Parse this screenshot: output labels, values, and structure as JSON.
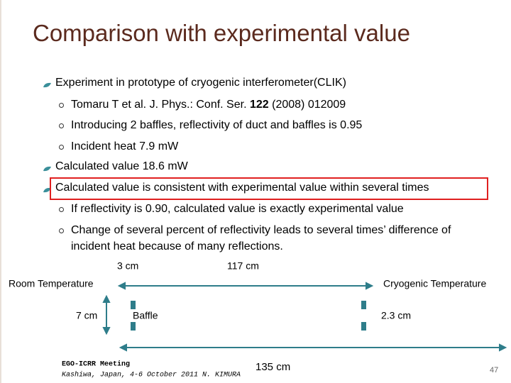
{
  "title": "Comparison with experimental value",
  "bullets": [
    {
      "text": "Experiment in prototype of cryogenic interferometer(CLIK)",
      "sub": [
        {
          "parts": [
            "Tomaru T et al. J. Phys.: Conf. Ser. ",
            "122",
            " (2008) 012009"
          ]
        },
        {
          "parts": [
            "Introducing 2 baffles, reflectivity of duct and baffles is 0.95"
          ]
        },
        {
          "parts": [
            "Incident heat 7.9 mW"
          ]
        }
      ]
    },
    {
      "text": "Calculated value 18.6 mW",
      "sub": []
    },
    {
      "text": "Calculated value is consistent with experimental value within several times",
      "sub": [
        {
          "parts": [
            "If reflectivity is 0.90, calculated value is exactly experimental value"
          ]
        },
        {
          "parts": [
            "Change of several percent of reflectivity leads to several times’ difference of incident heat because of many reflections."
          ]
        }
      ]
    }
  ],
  "diagram": {
    "gap_label": "3 cm",
    "length_label": "117 cm",
    "room_label": "Room Temperature",
    "cryo_label": "Cryogenic Temperature",
    "height_label": "7 cm",
    "baffle_label": "Baffle",
    "baffle_gap_label": "2.3 cm",
    "total_label": "135 cm"
  },
  "footer": {
    "meeting": "EGO-ICRR Meeting",
    "place": "Kashiwa, Japan, 4-6 October 2011 N. KIMURA"
  },
  "page_number": "47"
}
